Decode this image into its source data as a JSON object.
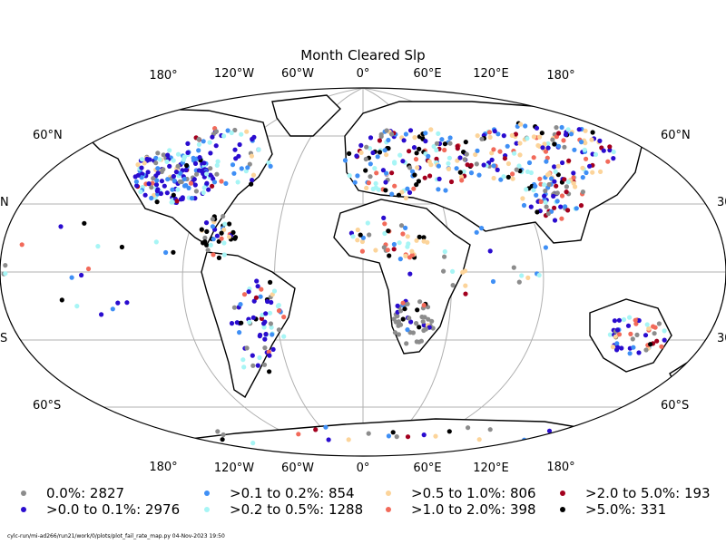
{
  "title": "Month Cleared Slp",
  "lon_labels_top": [
    "180°",
    "120°W",
    "60°W",
    "0°",
    "60°E",
    "120°E",
    "180°"
  ],
  "lon_labels_bottom": [
    "180°",
    "120°W",
    "60°W",
    "0°",
    "60°E",
    "120°E",
    "180°"
  ],
  "lat_labels_left": [
    "60°N",
    "N",
    "S",
    "60°S"
  ],
  "lat_labels_right": [
    "60°N",
    "30",
    "30",
    "60°S"
  ],
  "legend": [
    {
      "label": "0.0%: 2827",
      "color": "#8c8c8c"
    },
    {
      "label": ">0.0 to 0.1%: 2976",
      "color": "#2a0ccf"
    },
    {
      "label": ">0.1 to 0.2%: 854",
      "color": "#3f8ff5"
    },
    {
      "label": ">0.2 to 0.5%: 1288",
      "color": "#a7f5f5"
    },
    {
      "label": ">0.5 to 1.0%: 806",
      "color": "#fcd49a"
    },
    {
      "label": ">1.0 to 2.0%: 398",
      "color": "#f26a5a"
    },
    {
      "label": ">2.0 to 5.0%: 193",
      "color": "#a3001e"
    },
    {
      "label": ">5.0%: 331",
      "color": "#000000"
    }
  ],
  "footer": "cylc-run/mi-ad266/run21/work/0/plots/plot_fail_rate_map.py   04-Nov-2023 19:50"
}
